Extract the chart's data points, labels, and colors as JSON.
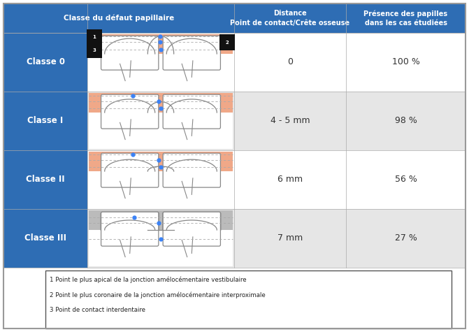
{
  "header_bg": "#2E6DB4",
  "header_text_color": "#FFFFFF",
  "left_col_bg": "#2E6DB4",
  "left_col_text_color": "#FFFFFF",
  "fig_bg": "#FFFFFF",
  "gum_color": "#F0A888",
  "gum_color_class3": "#BBBBBB",
  "tooth_fill": "#FFFFFF",
  "tooth_border": "#888888",
  "dot_color": "#3B82F6",
  "dashed_line_color": "#AAAAAA",
  "header_col1": "Classe du défaut papillaire",
  "header_col2": "Distance\nPoint de contact/Crête osseuse",
  "header_col3": "Présence des papilles\ndans les cas étudiées",
  "rows": [
    {
      "label": "Classe 0",
      "distance": "0",
      "presence": "100 %",
      "row_bg": "#FFFFFF"
    },
    {
      "label": "Classe I",
      "distance": "4 - 5 mm",
      "presence": "98 %",
      "row_bg": "#E6E6E6"
    },
    {
      "label": "Classe II",
      "distance": "6 mm",
      "presence": "56 %",
      "row_bg": "#FFFFFF"
    },
    {
      "label": "Classe III",
      "distance": "7 mm",
      "presence": "27 %",
      "row_bg": "#E6E6E6"
    }
  ],
  "footnote_lines": [
    "1 Point le plus apical de la jonction amélocémentaire vestibulaire",
    "2 Point le plus coronaire de la jonction amélocémentaire interproximale",
    "3 Point de contact interdentaire"
  ]
}
